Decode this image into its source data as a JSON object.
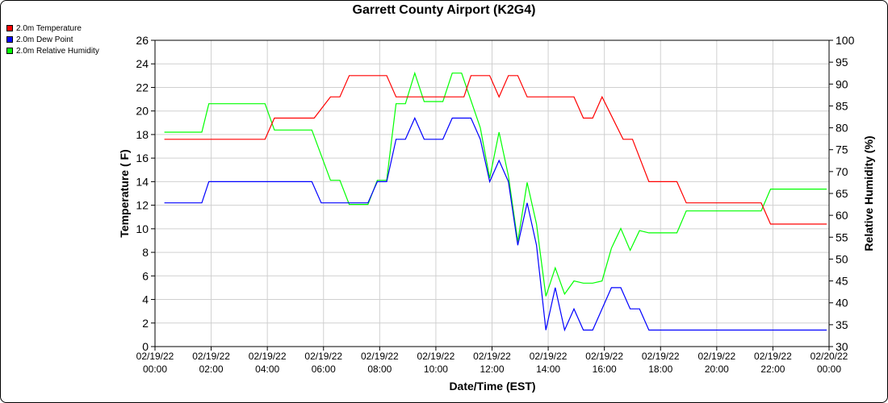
{
  "chart_data": {
    "type": "line",
    "title": "Garrett County Airport (K2G4)",
    "xlabel": "Date/Time (EST)",
    "ylabel": "Temperature ( F)",
    "ylabel_right": "Relative Humidity (%)",
    "ylim": [
      0,
      26
    ],
    "ylim_right": [
      30,
      100
    ],
    "y_ticks": [
      "0",
      "2",
      "4",
      "6",
      "8",
      "10",
      "12",
      "14",
      "16",
      "18",
      "20",
      "22",
      "24",
      "26"
    ],
    "y_right_ticks": [
      "30",
      "35",
      "40",
      "45",
      "50",
      "55",
      "60",
      "65",
      "70",
      "75",
      "80",
      "85",
      "90",
      "95",
      "100"
    ],
    "x_ticks": [
      {
        "date": "02/19/22",
        "time": "00:00"
      },
      {
        "date": "02/19/22",
        "time": "02:00"
      },
      {
        "date": "02/19/22",
        "time": "04:00"
      },
      {
        "date": "02/19/22",
        "time": "06:00"
      },
      {
        "date": "02/19/22",
        "time": "08:00"
      },
      {
        "date": "02/19/22",
        "time": "10:00"
      },
      {
        "date": "02/19/22",
        "time": "12:00"
      },
      {
        "date": "02/19/22",
        "time": "14:00"
      },
      {
        "date": "02/19/22",
        "time": "16:00"
      },
      {
        "date": "02/19/22",
        "time": "18:00"
      },
      {
        "date": "02/19/22",
        "time": "20:00"
      },
      {
        "date": "02/19/22",
        "time": "22:00"
      },
      {
        "date": "02/20/22",
        "time": "00:00"
      }
    ],
    "grid": true,
    "legend_position": "top-left",
    "series": [
      {
        "name": "2.0m Temperature",
        "color": "#ff0000",
        "axis": "left",
        "points": [
          [
            "00:20",
            17.6
          ],
          [
            "01:40",
            17.6
          ],
          [
            "02:40",
            17.6
          ],
          [
            "03:40",
            17.6
          ],
          [
            "03:55",
            17.6
          ],
          [
            "04:15",
            19.4
          ],
          [
            "05:40",
            19.4
          ],
          [
            "06:15",
            21.2
          ],
          [
            "06:35",
            21.2
          ],
          [
            "06:55",
            23
          ],
          [
            "07:40",
            23
          ],
          [
            "08:15",
            23
          ],
          [
            "08:35",
            21.2
          ],
          [
            "09:40",
            21.2
          ],
          [
            "10:20",
            21.2
          ],
          [
            "11:00",
            21.2
          ],
          [
            "11:15",
            23
          ],
          [
            "11:55",
            23
          ],
          [
            "12:15",
            21.2
          ],
          [
            "12:35",
            23
          ],
          [
            "12:55",
            23
          ],
          [
            "13:15",
            21.2
          ],
          [
            "14:20",
            21.2
          ],
          [
            "14:55",
            21.2
          ],
          [
            "15:15",
            19.4
          ],
          [
            "15:35",
            19.4
          ],
          [
            "15:55",
            21.2
          ],
          [
            "16:40",
            17.6
          ],
          [
            "17:00",
            17.6
          ],
          [
            "17:35",
            14
          ],
          [
            "18:35",
            14
          ],
          [
            "18:55",
            12.2
          ],
          [
            "20:00",
            12.2
          ],
          [
            "21:35",
            12.2
          ],
          [
            "21:55",
            10.4
          ],
          [
            "23:55",
            10.4
          ]
        ]
      },
      {
        "name": "2.0m Dew Point",
        "color": "#0000ff",
        "axis": "left",
        "points": [
          [
            "00:20",
            12.2
          ],
          [
            "01:40",
            12.2
          ],
          [
            "01:55",
            14
          ],
          [
            "03:40",
            14
          ],
          [
            "05:35",
            14
          ],
          [
            "05:55",
            12.2
          ],
          [
            "06:55",
            12.2
          ],
          [
            "07:35",
            12.2
          ],
          [
            "07:55",
            14
          ],
          [
            "08:15",
            14
          ],
          [
            "08:35",
            17.6
          ],
          [
            "08:55",
            17.6
          ],
          [
            "09:15",
            19.4
          ],
          [
            "09:35",
            17.6
          ],
          [
            "10:15",
            17.6
          ],
          [
            "10:35",
            19.4
          ],
          [
            "11:15",
            19.4
          ],
          [
            "11:35",
            17.6
          ],
          [
            "11:55",
            14
          ],
          [
            "12:15",
            15.8
          ],
          [
            "12:35",
            14
          ],
          [
            "12:55",
            8.6
          ],
          [
            "13:15",
            12.2
          ],
          [
            "13:35",
            8.6
          ],
          [
            "13:55",
            1.4
          ],
          [
            "14:15",
            5
          ],
          [
            "14:35",
            1.4
          ],
          [
            "14:55",
            3.2
          ],
          [
            "15:15",
            1.4
          ],
          [
            "15:35",
            1.4
          ],
          [
            "16:15",
            5
          ],
          [
            "16:35",
            5
          ],
          [
            "16:55",
            3.2
          ],
          [
            "17:15",
            3.2
          ],
          [
            "17:35",
            1.4
          ],
          [
            "23:55",
            1.4
          ]
        ]
      },
      {
        "name": "2.0m Relative Humidity",
        "color": "#00ff00",
        "axis": "right",
        "points": [
          [
            "00:20",
            79
          ],
          [
            "01:40",
            79
          ],
          [
            "01:55",
            85.5
          ],
          [
            "03:55",
            85.5
          ],
          [
            "04:15",
            79.5
          ],
          [
            "05:35",
            79.5
          ],
          [
            "06:15",
            68
          ],
          [
            "06:35",
            68
          ],
          [
            "06:55",
            62.5
          ],
          [
            "07:35",
            62.5
          ],
          [
            "07:55",
            68
          ],
          [
            "08:15",
            68
          ],
          [
            "08:35",
            85.5
          ],
          [
            "08:55",
            85.5
          ],
          [
            "09:15",
            92.5
          ],
          [
            "09:35",
            86
          ],
          [
            "10:15",
            86
          ],
          [
            "10:35",
            92.5
          ],
          [
            "10:55",
            92.5
          ],
          [
            "11:35",
            80
          ],
          [
            "11:55",
            68.5
          ],
          [
            "12:15",
            79
          ],
          [
            "12:35",
            69
          ],
          [
            "12:55",
            54
          ],
          [
            "13:15",
            67.5
          ],
          [
            "13:35",
            58
          ],
          [
            "13:55",
            41.5
          ],
          [
            "14:15",
            48
          ],
          [
            "14:35",
            42
          ],
          [
            "14:55",
            45
          ],
          [
            "15:15",
            44.5
          ],
          [
            "15:35",
            44.5
          ],
          [
            "15:55",
            45
          ],
          [
            "16:15",
            52.5
          ],
          [
            "16:35",
            57
          ],
          [
            "16:55",
            52
          ],
          [
            "17:15",
            56.5
          ],
          [
            "17:35",
            56
          ],
          [
            "18:35",
            56
          ],
          [
            "18:55",
            61
          ],
          [
            "20:00",
            61
          ],
          [
            "21:35",
            61
          ],
          [
            "21:55",
            66
          ],
          [
            "23:55",
            66
          ]
        ]
      }
    ]
  }
}
